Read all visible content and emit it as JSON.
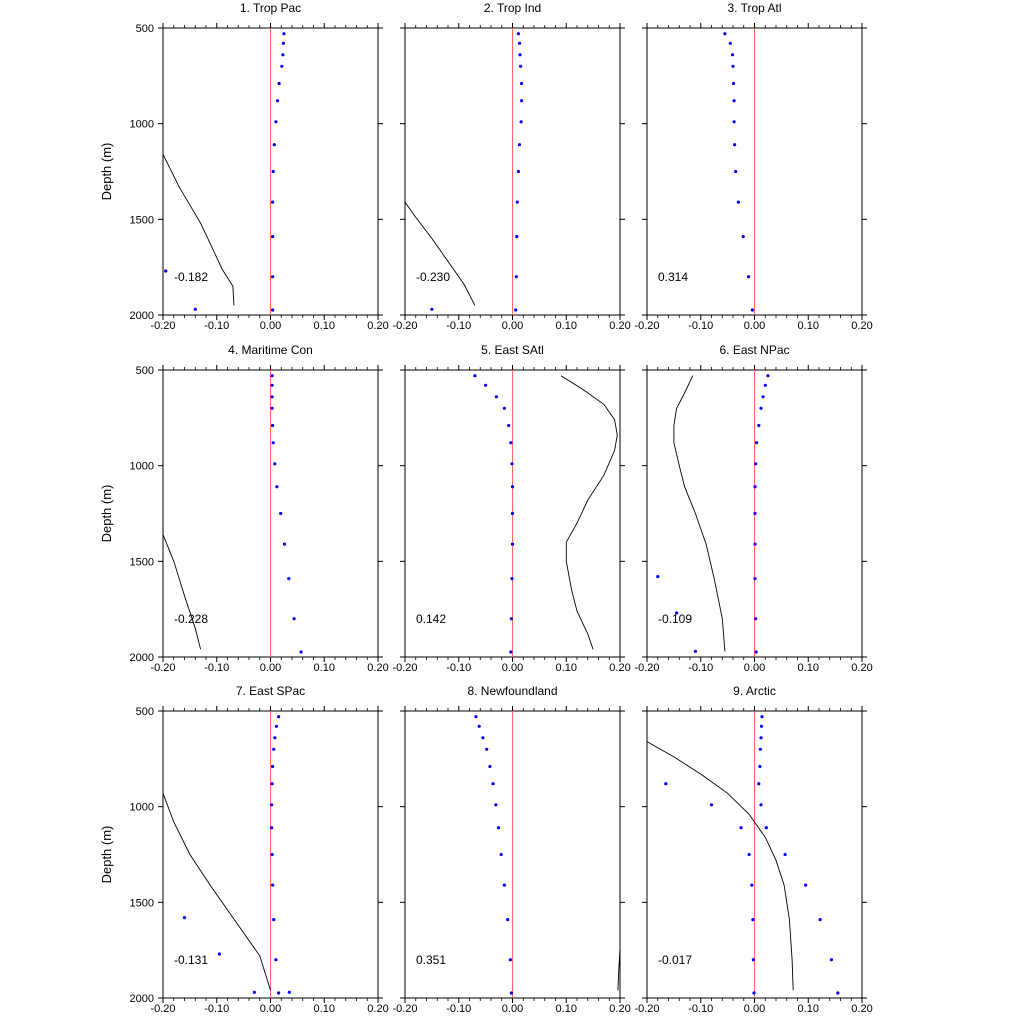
{
  "chart_data": {
    "type": "scatter",
    "ylabel": "Depth (m)",
    "xlim": [
      -0.2,
      0.2
    ],
    "ylim": [
      500,
      2000
    ],
    "y_reversed": true,
    "x_tick_labels": [
      "-0.20",
      "-0.10",
      "0.00",
      "0.10",
      "0.20"
    ],
    "y_tick_values": [
      500,
      1000,
      1500,
      2000
    ],
    "y_tick_labels": [
      "500",
      "1000",
      "1500",
      "2000"
    ],
    "colors": {
      "points": "#0000ff",
      "zero_line": "#ff6666",
      "curve": "#000000",
      "axes": "#000000"
    },
    "panels": [
      {
        "title": "1. Trop Pac",
        "correlation": "-0.182",
        "points": [
          [
            0.025,
            530
          ],
          [
            0.024,
            580
          ],
          [
            0.023,
            640
          ],
          [
            0.021,
            700
          ],
          [
            0.016,
            790
          ],
          [
            0.013,
            880
          ],
          [
            0.01,
            990
          ],
          [
            0.007,
            1110
          ],
          [
            0.005,
            1250
          ],
          [
            0.004,
            1410
          ],
          [
            0.004,
            1590
          ],
          [
            0.004,
            1800
          ],
          [
            0.004,
            2050
          ],
          [
            -0.195,
            1770
          ],
          [
            -0.14,
            1970
          ]
        ],
        "curve": [
          [
            -0.2,
            1160
          ],
          [
            -0.17,
            1330
          ],
          [
            -0.13,
            1520
          ],
          [
            -0.11,
            1640
          ],
          [
            -0.09,
            1760
          ],
          [
            -0.07,
            1850
          ],
          [
            -0.068,
            1950
          ]
        ]
      },
      {
        "title": "2. Trop Ind",
        "correlation": "-0.230",
        "points": [
          [
            0.011,
            530
          ],
          [
            0.013,
            580
          ],
          [
            0.014,
            640
          ],
          [
            0.015,
            700
          ],
          [
            0.017,
            790
          ],
          [
            0.017,
            880
          ],
          [
            0.016,
            990
          ],
          [
            0.013,
            1110
          ],
          [
            0.011,
            1250
          ],
          [
            0.009,
            1410
          ],
          [
            0.008,
            1590
          ],
          [
            0.007,
            1800
          ],
          [
            0.006,
            2050
          ],
          [
            -0.15,
            1970
          ]
        ],
        "curve": [
          [
            -0.2,
            1410
          ],
          [
            -0.18,
            1490
          ],
          [
            -0.15,
            1600
          ],
          [
            -0.12,
            1720
          ],
          [
            -0.09,
            1840
          ],
          [
            -0.07,
            1950
          ]
        ]
      },
      {
        "title": "3. Trop Atl",
        "correlation": "0.314",
        "points": [
          [
            -0.055,
            530
          ],
          [
            -0.045,
            580
          ],
          [
            -0.041,
            640
          ],
          [
            -0.04,
            700
          ],
          [
            -0.039,
            790
          ],
          [
            -0.038,
            880
          ],
          [
            -0.038,
            990
          ],
          [
            -0.037,
            1110
          ],
          [
            -0.035,
            1250
          ],
          [
            -0.03,
            1410
          ],
          [
            -0.021,
            1590
          ],
          [
            -0.011,
            1800
          ],
          [
            -0.004,
            2050
          ]
        ],
        "curve": []
      },
      {
        "title": "4. Maritime Con",
        "correlation": "-0.228",
        "points": [
          [
            0.003,
            530
          ],
          [
            0.003,
            580
          ],
          [
            0.003,
            640
          ],
          [
            0.003,
            700
          ],
          [
            0.004,
            790
          ],
          [
            0.005,
            880
          ],
          [
            0.008,
            990
          ],
          [
            0.012,
            1110
          ],
          [
            0.019,
            1250
          ],
          [
            0.026,
            1410
          ],
          [
            0.034,
            1590
          ],
          [
            0.044,
            1800
          ],
          [
            0.057,
            2050
          ]
        ],
        "curve": [
          [
            -0.2,
            1360
          ],
          [
            -0.18,
            1500
          ],
          [
            -0.16,
            1680
          ],
          [
            -0.14,
            1850
          ],
          [
            -0.13,
            1960
          ]
        ]
      },
      {
        "title": "5. East SAtl",
        "correlation": "0.142",
        "points": [
          [
            -0.07,
            530
          ],
          [
            -0.05,
            580
          ],
          [
            -0.03,
            640
          ],
          [
            -0.015,
            700
          ],
          [
            -0.007,
            790
          ],
          [
            -0.003,
            880
          ],
          [
            -0.001,
            990
          ],
          [
            0.0,
            1110
          ],
          [
            0.0,
            1250
          ],
          [
            0.0,
            1410
          ],
          [
            -0.001,
            1590
          ],
          [
            -0.002,
            1800
          ],
          [
            -0.003,
            2050
          ]
        ],
        "curve": [
          [
            0.09,
            530
          ],
          [
            0.13,
            600
          ],
          [
            0.17,
            680
          ],
          [
            0.19,
            760
          ],
          [
            0.195,
            840
          ],
          [
            0.19,
            920
          ],
          [
            0.17,
            1050
          ],
          [
            0.14,
            1180
          ],
          [
            0.12,
            1300
          ],
          [
            0.1,
            1400
          ],
          [
            0.1,
            1500
          ],
          [
            0.11,
            1650
          ],
          [
            0.12,
            1760
          ],
          [
            0.14,
            1880
          ],
          [
            0.15,
            1960
          ]
        ]
      },
      {
        "title": "6. East NPac",
        "correlation": "-0.109",
        "points": [
          [
            0.025,
            530
          ],
          [
            0.02,
            580
          ],
          [
            0.016,
            640
          ],
          [
            0.012,
            700
          ],
          [
            0.008,
            790
          ],
          [
            0.004,
            880
          ],
          [
            0.002,
            990
          ],
          [
            0.001,
            1110
          ],
          [
            0.001,
            1250
          ],
          [
            0.001,
            1410
          ],
          [
            0.001,
            1590
          ],
          [
            0.002,
            1800
          ],
          [
            0.003,
            2050
          ],
          [
            -0.18,
            1580
          ],
          [
            -0.145,
            1770
          ],
          [
            -0.11,
            1970
          ]
        ],
        "curve": [
          [
            -0.115,
            530
          ],
          [
            -0.13,
            620
          ],
          [
            -0.145,
            700
          ],
          [
            -0.15,
            790
          ],
          [
            -0.15,
            880
          ],
          [
            -0.14,
            1000
          ],
          [
            -0.13,
            1110
          ],
          [
            -0.11,
            1250
          ],
          [
            -0.09,
            1410
          ],
          [
            -0.075,
            1590
          ],
          [
            -0.06,
            1800
          ],
          [
            -0.055,
            1970
          ]
        ]
      },
      {
        "title": "7. East SPac",
        "correlation": "-0.131",
        "points": [
          [
            0.015,
            530
          ],
          [
            0.011,
            580
          ],
          [
            0.008,
            640
          ],
          [
            0.006,
            700
          ],
          [
            0.004,
            790
          ],
          [
            0.003,
            880
          ],
          [
            0.002,
            990
          ],
          [
            0.002,
            1110
          ],
          [
            0.003,
            1250
          ],
          [
            0.004,
            1410
          ],
          [
            0.006,
            1590
          ],
          [
            0.01,
            1800
          ],
          [
            0.015,
            2050
          ],
          [
            -0.16,
            1580
          ],
          [
            -0.095,
            1770
          ],
          [
            -0.03,
            1970
          ],
          [
            0.035,
            1970
          ]
        ],
        "curve": [
          [
            -0.2,
            930
          ],
          [
            -0.18,
            1080
          ],
          [
            -0.15,
            1250
          ],
          [
            -0.11,
            1420
          ],
          [
            -0.06,
            1620
          ],
          [
            -0.02,
            1780
          ],
          [
            0.0,
            1960
          ]
        ]
      },
      {
        "title": "8. Newfoundland",
        "correlation": "0.351",
        "points": [
          [
            -0.068,
            530
          ],
          [
            -0.062,
            580
          ],
          [
            -0.055,
            640
          ],
          [
            -0.048,
            700
          ],
          [
            -0.042,
            790
          ],
          [
            -0.036,
            880
          ],
          [
            -0.031,
            990
          ],
          [
            -0.026,
            1110
          ],
          [
            -0.021,
            1250
          ],
          [
            -0.015,
            1410
          ],
          [
            -0.009,
            1590
          ],
          [
            -0.004,
            1800
          ],
          [
            -0.002,
            2050
          ]
        ],
        "curve": [
          [
            0.2,
            1740
          ],
          [
            0.198,
            1840
          ],
          [
            0.196,
            1960
          ]
        ]
      },
      {
        "title": "9. Arctic",
        "correlation": "-0.017",
        "points": [
          [
            0.014,
            530
          ],
          [
            0.013,
            580
          ],
          [
            0.012,
            640
          ],
          [
            0.011,
            700
          ],
          [
            0.01,
            790
          ],
          [
            0.008,
            880
          ],
          [
            0.012,
            990
          ],
          [
            0.022,
            1110
          ],
          [
            0.057,
            1250
          ],
          [
            0.095,
            1410
          ],
          [
            0.122,
            1590
          ],
          [
            0.143,
            1800
          ],
          [
            0.155,
            2050
          ],
          [
            -0.165,
            880
          ],
          [
            -0.08,
            990
          ],
          [
            -0.025,
            1110
          ],
          [
            -0.01,
            1250
          ],
          [
            -0.005,
            1410
          ],
          [
            -0.003,
            1590
          ],
          [
            -0.002,
            1800
          ],
          [
            -0.001,
            2050
          ]
        ],
        "curve": [
          [
            -0.2,
            660
          ],
          [
            -0.15,
            740
          ],
          [
            -0.1,
            830
          ],
          [
            -0.05,
            930
          ],
          [
            -0.01,
            1040
          ],
          [
            0.02,
            1160
          ],
          [
            0.04,
            1280
          ],
          [
            0.055,
            1410
          ],
          [
            0.065,
            1590
          ],
          [
            0.07,
            1800
          ],
          [
            0.072,
            1960
          ]
        ]
      }
    ]
  }
}
